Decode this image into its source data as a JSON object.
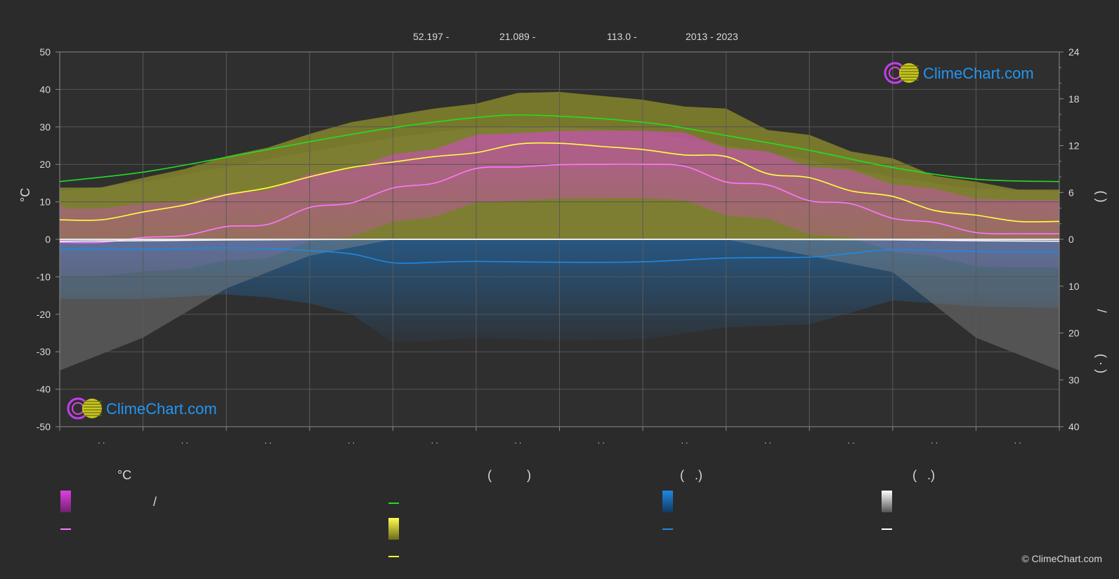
{
  "header": {
    "latitude": "52.197 -",
    "longitude": "21.089 -",
    "elevation": "113.0 -",
    "years": "2013 - 2023"
  },
  "axes": {
    "left_unit": "°C",
    "right_top_bracket": "( )",
    "right_mid": "/",
    "right_bottom_bracket": "( · )"
  },
  "brand": {
    "name": "ClimeChart.com",
    "copyright": "© ClimeChart.com"
  },
  "legend": {
    "col1_head": "°C",
    "col1_slash": "/",
    "col2_head": "(          )",
    "col3_head": "(   .)",
    "col4_head": "(   .)"
  },
  "colors": {
    "background": "#2b2b2b",
    "temp_band": "#e040e0",
    "temp_mean": "#ff77ff",
    "daylight": "#22dd22",
    "sunshine_band": "#b5b52a",
    "sunshine_mean": "#ffff40",
    "rain": "#1e88e5",
    "snow": "#cfcfcf",
    "brand_text": "#2196f3"
  },
  "chart_data": {
    "type": "line",
    "months": 12,
    "left_axis": {
      "ticks": [
        50,
        40,
        30,
        20,
        10,
        0,
        -10,
        -20,
        -30,
        -40,
        -50
      ],
      "ylim": [
        -50,
        50
      ]
    },
    "right_axis_top": {
      "ticks": [
        24,
        18,
        12,
        6,
        0
      ],
      "ylim": [
        0,
        24
      ]
    },
    "right_axis_bottom": {
      "ticks": [
        0,
        10,
        20,
        30,
        40
      ],
      "ylim": [
        0,
        40
      ]
    },
    "month_labels": [
      ". .",
      ". .",
      ". .",
      ". .",
      ". .",
      ". .",
      ". .",
      ". .",
      ". .",
      ". .",
      ". .",
      ". ."
    ],
    "series": [
      {
        "key": "daylight",
        "axis": "right_top",
        "x": [
          0,
          1,
          2,
          3,
          4,
          5,
          5.7,
          7,
          8,
          9,
          10,
          11,
          12
        ],
        "values": [
          7.4,
          8.6,
          10.5,
          12.5,
          14.3,
          15.6,
          15.9,
          15.0,
          13.3,
          11.4,
          9.2,
          7.7,
          7.4
        ]
      },
      {
        "key": "sunshine_mean",
        "axis": "right_top",
        "x": [
          0,
          0.5,
          1,
          1.5,
          2,
          2.5,
          3,
          3.5,
          4,
          4.5,
          5,
          5.5,
          6,
          6.5,
          7,
          7.5,
          8,
          8.5,
          9,
          9.5,
          10,
          10.5,
          11,
          11.5,
          12
        ],
        "values": [
          2.5,
          2.5,
          3.5,
          4.4,
          5.7,
          6.6,
          8.0,
          9.2,
          9.9,
          10.6,
          11.1,
          12.2,
          12.3,
          11.9,
          11.5,
          10.8,
          10.6,
          8.4,
          7.9,
          6.2,
          5.5,
          3.7,
          3.1,
          2.3,
          2.3
        ]
      },
      {
        "key": "temp_mean",
        "axis": "left",
        "x": [
          0,
          0.5,
          1,
          1.5,
          2,
          2.5,
          3,
          3.5,
          4,
          4.5,
          5,
          5.5,
          6,
          6.5,
          7,
          7.5,
          8,
          8.5,
          9,
          9.5,
          10,
          10.5,
          11,
          11.5,
          12
        ],
        "values": [
          -0.8,
          -0.8,
          0.5,
          1.0,
          3.4,
          4.0,
          8.5,
          9.7,
          13.7,
          15.0,
          18.9,
          19.3,
          19.9,
          20.0,
          20.0,
          19.5,
          15.3,
          14.5,
          10.3,
          9.5,
          5.6,
          4.5,
          1.8,
          1.5,
          1.5
        ]
      },
      {
        "key": "rain_mean",
        "axis": "right_bottom",
        "x": [
          0,
          1,
          2,
          2.5,
          3,
          3.5,
          4,
          4.5,
          5,
          6,
          7,
          8,
          9,
          9.5,
          10,
          11,
          12
        ],
        "values": [
          2.1,
          2.1,
          1.8,
          2.0,
          2.4,
          3.1,
          5.0,
          4.9,
          4.7,
          4.9,
          4.8,
          4.0,
          3.8,
          3.0,
          2.2,
          2.6,
          2.7
        ]
      },
      {
        "key": "snow_mean",
        "axis": "right_bottom",
        "x": [
          0,
          1,
          2,
          3,
          4,
          5,
          6,
          7,
          8,
          9,
          10,
          11,
          12
        ],
        "values": [
          0.4,
          0.3,
          0.15,
          0.05,
          0,
          0,
          0,
          0,
          0,
          0.05,
          0.1,
          0.3,
          0.4
        ]
      }
    ]
  }
}
